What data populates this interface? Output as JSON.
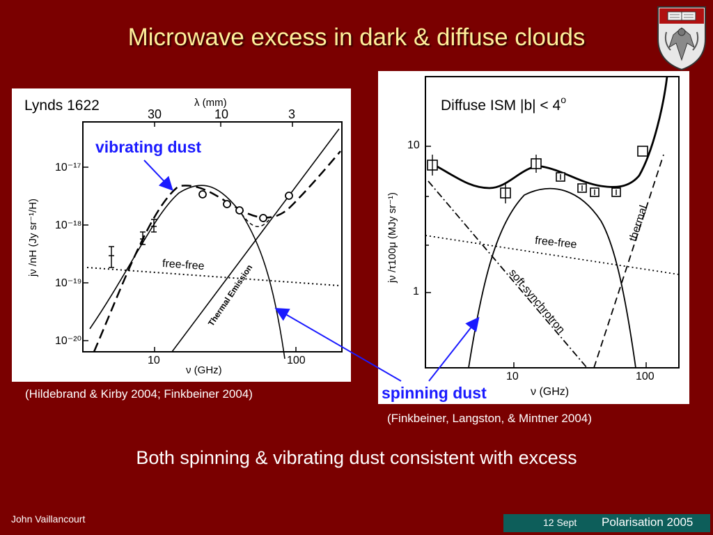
{
  "slide": {
    "title": "Microwave excess in dark & diffuse clouds",
    "bottom_text": "Both spinning & vibrating dust consistent with excess",
    "author": "John Vaillancourt",
    "footer_date": "12 Sept",
    "footer_conference": "Polarisation 2005",
    "colors": {
      "background": "#7a0000",
      "title": "#ffef9a",
      "arrow": "#1a1aff",
      "footer": "#0d5e5a"
    }
  },
  "left_plot": {
    "title": "Lynds 1622",
    "top_axis_label": "λ (mm)",
    "top_ticks": [
      "30",
      "10",
      "3"
    ],
    "x_label": "ν (GHz)",
    "x_ticks": [
      "10",
      "100"
    ],
    "y_label": "jν /nH (Jy sr⁻¹/H)",
    "y_ticks": [
      "10⁻¹⁷",
      "10⁻¹⁸",
      "10⁻¹⁹",
      "10⁻²⁰"
    ],
    "annotation_free_free": "free-free",
    "annotation_thermal": "Thermal Emission",
    "callout": "vibrating dust",
    "caption": "(Hildebrand & Kirby 2004; Finkbeiner 2004)"
  },
  "right_plot": {
    "title": "Diffuse ISM   |b| < 4",
    "title_sup": "o",
    "x_label": "ν (GHz)",
    "x_ticks": [
      "10",
      "100"
    ],
    "y_label": "jν /τ100μ (MJy sr⁻¹)",
    "y_ticks": [
      "10",
      "1"
    ],
    "annotation_free_free": "free-free",
    "annotation_thermal": "thermal",
    "annotation_synchrotron": "soft-synchrotron",
    "callout": "spinning dust",
    "caption": "(Finkbeiner, Langston, & Mintner 2004)"
  }
}
